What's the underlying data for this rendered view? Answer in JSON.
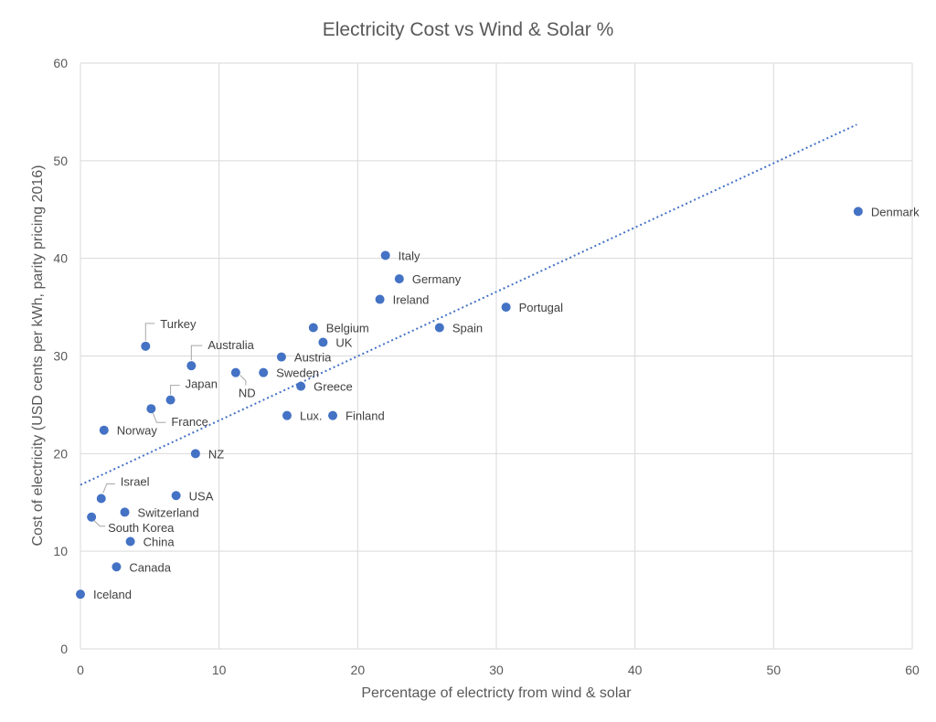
{
  "chart_data": {
    "type": "scatter",
    "title": "Electricity Cost vs Wind & Solar %",
    "xlabel": "Percentage of electricty from wind & solar",
    "ylabel": "Cost of electricity (USD cents per kWh, parity pricing 2016)",
    "xlim": [
      0,
      60
    ],
    "ylim": [
      0,
      60
    ],
    "xticks": [
      "0",
      "10",
      "20",
      "30",
      "40",
      "50",
      "60"
    ],
    "yticks": [
      "0",
      "10",
      "20",
      "30",
      "40",
      "50",
      "60"
    ],
    "grid": true,
    "point_color": "#4472c4",
    "trendline": {
      "style": "dotted",
      "color": "#4472c4",
      "from": [
        0,
        16.8
      ],
      "to": [
        56,
        53.7
      ]
    },
    "points": [
      {
        "label": "Denmark",
        "x": 56.1,
        "y": 44.8
      },
      {
        "label": "Italy",
        "x": 22.0,
        "y": 40.3
      },
      {
        "label": "Germany",
        "x": 23.0,
        "y": 37.9
      },
      {
        "label": "Ireland",
        "x": 21.6,
        "y": 35.8
      },
      {
        "label": "Portugal",
        "x": 30.7,
        "y": 35.0
      },
      {
        "label": "Spain",
        "x": 25.9,
        "y": 32.9
      },
      {
        "label": "Belgium",
        "x": 16.8,
        "y": 32.9
      },
      {
        "label": "UK",
        "x": 17.5,
        "y": 31.4
      },
      {
        "label": "Turkey",
        "x": 4.7,
        "y": 31.0
      },
      {
        "label": "Austria",
        "x": 14.5,
        "y": 29.9
      },
      {
        "label": "Australia",
        "x": 8.0,
        "y": 29.0
      },
      {
        "label": "ND",
        "x": 11.2,
        "y": 28.3
      },
      {
        "label": "Sweden",
        "x": 13.2,
        "y": 28.3
      },
      {
        "label": "Greece",
        "x": 15.9,
        "y": 26.9
      },
      {
        "label": "Japan",
        "x": 6.5,
        "y": 25.5
      },
      {
        "label": "France",
        "x": 5.1,
        "y": 24.6
      },
      {
        "label": "Lux.",
        "x": 14.9,
        "y": 23.9
      },
      {
        "label": "Finland",
        "x": 18.2,
        "y": 23.9
      },
      {
        "label": "Norway",
        "x": 1.7,
        "y": 22.4
      },
      {
        "label": "NZ",
        "x": 8.3,
        "y": 20.0
      },
      {
        "label": "USA",
        "x": 6.9,
        "y": 15.7
      },
      {
        "label": "Israel",
        "x": 1.5,
        "y": 15.4
      },
      {
        "label": "Switzerland",
        "x": 3.2,
        "y": 14.0
      },
      {
        "label": "South Korea",
        "x": 0.8,
        "y": 13.5
      },
      {
        "label": "China",
        "x": 3.6,
        "y": 11.0
      },
      {
        "label": "Canada",
        "x": 2.6,
        "y": 8.4
      },
      {
        "label": "Iceland",
        "x": 0.0,
        "y": 5.6
      }
    ]
  }
}
